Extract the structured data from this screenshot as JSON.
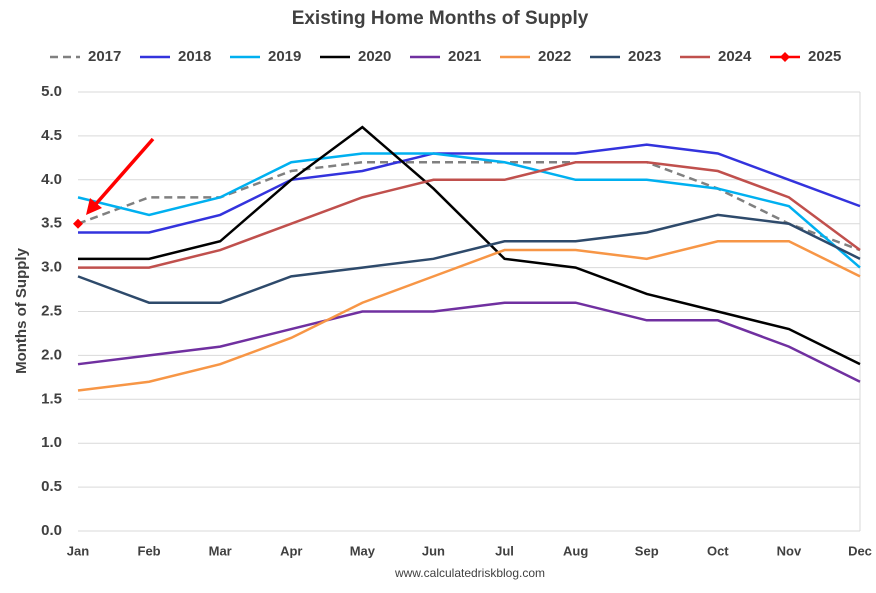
{
  "chart_data": {
    "type": "line",
    "title": "Existing Home Months of Supply",
    "y_label": "Months of Supply",
    "source": "www.calculatedriskblog.com",
    "categories": [
      "Jan",
      "Feb",
      "Mar",
      "Apr",
      "May",
      "Jun",
      "Jul",
      "Aug",
      "Sep",
      "Oct",
      "Nov",
      "Dec"
    ],
    "ylim": [
      0,
      5
    ],
    "yticks": [
      {
        "value": 0,
        "label": "0.0"
      },
      0.5,
      {
        "value": 1,
        "label": "1.0"
      },
      1.5,
      {
        "value": 2,
        "label": "2.0"
      },
      2.5,
      {
        "value": 3,
        "label": "3.0"
      },
      3.5,
      {
        "value": 4,
        "label": "4.0"
      },
      4.5,
      {
        "value": 5,
        "label": "5.0"
      }
    ],
    "grid": true,
    "legend": "top",
    "series": [
      {
        "name": "2017",
        "color": "#808080",
        "dashed": true,
        "values": [
          3.5,
          3.8,
          3.8,
          4.1,
          4.2,
          4.2,
          4.2,
          4.2,
          4.2,
          3.9,
          3.5,
          3.2
        ]
      },
      {
        "name": "2018",
        "color": "#3333dd",
        "values": [
          3.4,
          3.4,
          3.6,
          4.0,
          4.1,
          4.3,
          4.3,
          4.3,
          4.4,
          4.3,
          4.0,
          3.7
        ]
      },
      {
        "name": "2019",
        "color": "#00b0f0",
        "values": [
          3.8,
          3.6,
          3.8,
          4.2,
          4.3,
          4.3,
          4.2,
          4.0,
          4.0,
          3.9,
          3.7,
          3.0
        ]
      },
      {
        "name": "2020",
        "color": "#000000",
        "values": [
          3.1,
          3.1,
          3.3,
          4.0,
          4.6,
          3.9,
          3.1,
          3.0,
          2.7,
          2.5,
          2.3,
          1.9
        ]
      },
      {
        "name": "2021",
        "color": "#7030a0",
        "values": [
          1.9,
          2.0,
          2.1,
          2.3,
          2.5,
          2.5,
          2.6,
          2.6,
          2.4,
          2.4,
          2.1,
          1.7
        ]
      },
      {
        "name": "2022",
        "color": "#f79646",
        "values": [
          1.6,
          1.7,
          1.9,
          2.2,
          2.6,
          2.9,
          3.2,
          3.2,
          3.1,
          3.3,
          3.3,
          2.9
        ]
      },
      {
        "name": "2023",
        "color": "#2e4a6b",
        "values": [
          2.9,
          2.6,
          2.6,
          2.9,
          3.0,
          3.1,
          3.3,
          3.3,
          3.4,
          3.6,
          3.5,
          3.1
        ]
      },
      {
        "name": "2024",
        "color": "#c0504d",
        "values": [
          3.0,
          3.0,
          3.2,
          3.5,
          3.8,
          4.0,
          4.0,
          4.2,
          4.2,
          4.1,
          3.8,
          3.2
        ]
      },
      {
        "name": "2025",
        "color": "#ff0000",
        "marker": "diamond",
        "values": [
          3.5,
          null,
          null,
          null,
          null,
          null,
          null,
          null,
          null,
          null,
          null,
          null
        ]
      }
    ]
  }
}
